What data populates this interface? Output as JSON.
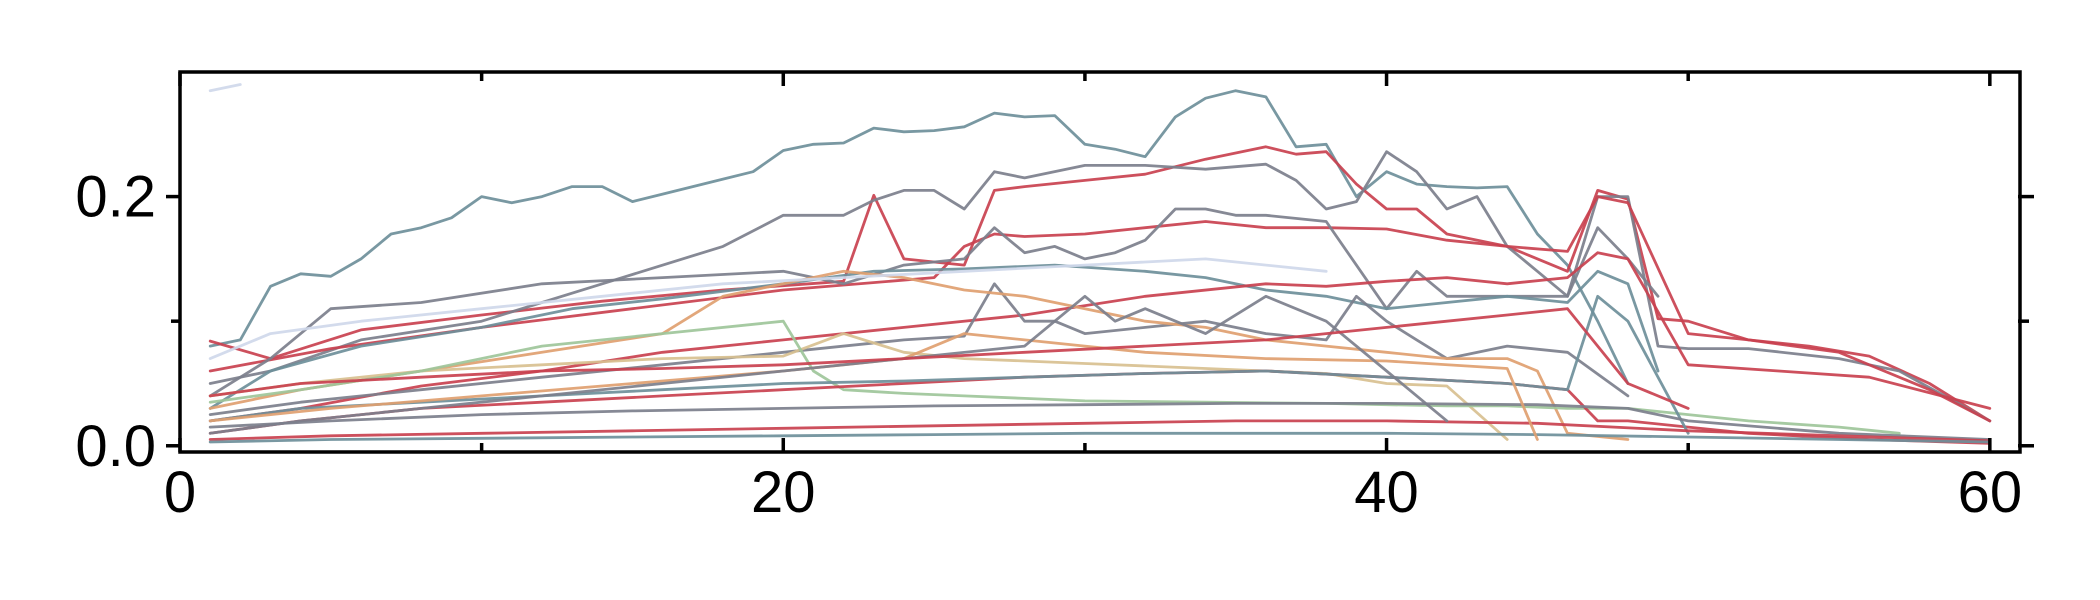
{
  "chart_data": {
    "type": "line",
    "title": "",
    "xlabel": "",
    "ylabel": "",
    "xlim": [
      0,
      61
    ],
    "ylim": [
      -0.005,
      0.3
    ],
    "x_ticks": [
      0,
      20,
      40,
      60
    ],
    "x_tick_labels": [
      "0",
      "20",
      "40",
      "60"
    ],
    "x_minor_ticks": [
      10,
      30,
      50
    ],
    "y_ticks": [
      0.0,
      0.2
    ],
    "y_tick_labels": [
      "0.0",
      "0.2"
    ],
    "y_minor_ticks": [
      0.1
    ],
    "grid": false,
    "legend": "none",
    "palette": {
      "slate": "#6e8f9a",
      "gray": "#7c7f8c",
      "red": "#c9414f",
      "orange": "#e0a070",
      "tan": "#d8c090",
      "green": "#9ec59a",
      "lavender": "#cfd8ea"
    },
    "series": [
      {
        "color": "#6e8f9a",
        "x": [
          1,
          2,
          3,
          4,
          5,
          6,
          7,
          8,
          9,
          10,
          11,
          12,
          13,
          14,
          15,
          16,
          17,
          18,
          19,
          20,
          21,
          22,
          23,
          24,
          25,
          26,
          27,
          28,
          29,
          30,
          31,
          32,
          33,
          34,
          35,
          36,
          37,
          38,
          39,
          40,
          41,
          42,
          43,
          44,
          45,
          46,
          47,
          48
        ],
        "y": [
          0.08,
          0.085,
          0.128,
          0.138,
          0.136,
          0.15,
          0.17,
          0.175,
          0.183,
          0.2,
          0.195,
          0.2,
          0.208,
          0.208,
          0.196,
          0.202,
          0.208,
          0.214,
          0.22,
          0.237,
          0.242,
          0.243,
          0.255,
          0.252,
          0.253,
          0.256,
          0.267,
          0.264,
          0.265,
          0.242,
          0.238,
          0.232,
          0.264,
          0.279,
          0.285,
          0.28,
          0.24,
          0.242,
          0.2,
          0.22,
          0.21,
          0.208,
          0.207,
          0.208,
          0.17,
          0.145,
          0.1,
          0.05
        ]
      },
      {
        "color": "#c9414f",
        "x": [
          1,
          3,
          6,
          10,
          14,
          18,
          22,
          23,
          24,
          26,
          27,
          28,
          30,
          32,
          34,
          36,
          37,
          38,
          39,
          40,
          41,
          42,
          44,
          46,
          47,
          48,
          49,
          50,
          52,
          54,
          56,
          58,
          60
        ],
        "y": [
          0.084,
          0.07,
          0.093,
          0.105,
          0.116,
          0.125,
          0.132,
          0.201,
          0.15,
          0.145,
          0.205,
          0.208,
          0.213,
          0.218,
          0.23,
          0.24,
          0.234,
          0.236,
          0.21,
          0.19,
          0.19,
          0.17,
          0.16,
          0.14,
          0.205,
          0.198,
          0.102,
          0.1,
          0.085,
          0.08,
          0.072,
          0.05,
          0.02
        ]
      },
      {
        "color": "#7c7f8c",
        "x": [
          1,
          3,
          6,
          10,
          14,
          18,
          20,
          22,
          23,
          24,
          25,
          26,
          27,
          28,
          30,
          32,
          34,
          36,
          37,
          38,
          39,
          40,
          41,
          42,
          43,
          44,
          45,
          46,
          47,
          48,
          49,
          50,
          52,
          55,
          57,
          60
        ],
        "y": [
          0.05,
          0.06,
          0.085,
          0.1,
          0.13,
          0.16,
          0.185,
          0.185,
          0.197,
          0.205,
          0.205,
          0.19,
          0.22,
          0.215,
          0.225,
          0.225,
          0.222,
          0.226,
          0.213,
          0.19,
          0.196,
          0.236,
          0.22,
          0.19,
          0.2,
          0.16,
          0.14,
          0.12,
          0.2,
          0.2,
          0.08,
          0.078,
          0.078,
          0.07,
          0.06,
          0.02
        ]
      },
      {
        "color": "#c9414f",
        "x": [
          1,
          5,
          10,
          15,
          20,
          25,
          26,
          27,
          28,
          30,
          32,
          34,
          36,
          38,
          40,
          42,
          44,
          46,
          47,
          48,
          50,
          52,
          55,
          58,
          60
        ],
        "y": [
          0.06,
          0.078,
          0.095,
          0.11,
          0.125,
          0.135,
          0.16,
          0.17,
          0.168,
          0.17,
          0.175,
          0.18,
          0.175,
          0.175,
          0.174,
          0.165,
          0.16,
          0.156,
          0.2,
          0.195,
          0.09,
          0.085,
          0.075,
          0.045,
          0.02
        ]
      },
      {
        "color": "#7c7f8c",
        "x": [
          1,
          3,
          5,
          8,
          12,
          16,
          20,
          22,
          24,
          26,
          27,
          28,
          29,
          30,
          31,
          32,
          33,
          34,
          35,
          36,
          38,
          40,
          41,
          42,
          44,
          46,
          47,
          48,
          49
        ],
        "y": [
          0.04,
          0.07,
          0.11,
          0.115,
          0.13,
          0.135,
          0.14,
          0.13,
          0.145,
          0.15,
          0.175,
          0.155,
          0.16,
          0.15,
          0.155,
          0.165,
          0.19,
          0.19,
          0.185,
          0.185,
          0.18,
          0.11,
          0.14,
          0.12,
          0.12,
          0.12,
          0.175,
          0.15,
          0.12
        ]
      },
      {
        "color": "#6e8f9a",
        "x": [
          1,
          3,
          6,
          10,
          13,
          16,
          20,
          23,
          26,
          29,
          32,
          34,
          36,
          38,
          40,
          42,
          44,
          46,
          47,
          48,
          49
        ],
        "y": [
          0.03,
          0.06,
          0.08,
          0.095,
          0.11,
          0.118,
          0.13,
          0.14,
          0.142,
          0.145,
          0.14,
          0.135,
          0.125,
          0.12,
          0.11,
          0.115,
          0.12,
          0.115,
          0.14,
          0.13,
          0.06
        ]
      },
      {
        "color": "#c9414f",
        "x": [
          1,
          4,
          8,
          12,
          16,
          20,
          24,
          28,
          32,
          36,
          38,
          40,
          42,
          44,
          46,
          47,
          48,
          50,
          53,
          56,
          60
        ],
        "y": [
          0.02,
          0.03,
          0.048,
          0.06,
          0.075,
          0.085,
          0.095,
          0.105,
          0.12,
          0.13,
          0.128,
          0.132,
          0.135,
          0.13,
          0.135,
          0.155,
          0.15,
          0.065,
          0.06,
          0.055,
          0.03
        ]
      },
      {
        "color": "#7c7f8c",
        "x": [
          1,
          4,
          8,
          12,
          16,
          20,
          24,
          26,
          27,
          28,
          29,
          30,
          32,
          34,
          36,
          38,
          39,
          40,
          41,
          42,
          44,
          46,
          48
        ],
        "y": [
          0.025,
          0.035,
          0.045,
          0.055,
          0.065,
          0.075,
          0.085,
          0.088,
          0.13,
          0.1,
          0.1,
          0.09,
          0.095,
          0.1,
          0.09,
          0.085,
          0.12,
          0.1,
          0.085,
          0.07,
          0.08,
          0.075,
          0.04
        ]
      },
      {
        "color": "#e0a070",
        "x": [
          1,
          4,
          8,
          12,
          16,
          18,
          20,
          22,
          24,
          26,
          28,
          30,
          32,
          34,
          36,
          38,
          40,
          42,
          44,
          45,
          46,
          48
        ],
        "y": [
          0.03,
          0.045,
          0.06,
          0.075,
          0.09,
          0.12,
          0.13,
          0.14,
          0.135,
          0.125,
          0.12,
          0.11,
          0.1,
          0.095,
          0.085,
          0.08,
          0.075,
          0.07,
          0.07,
          0.06,
          0.01,
          0.005
        ]
      },
      {
        "color": "#d8c090",
        "x": [
          1,
          4,
          8,
          12,
          16,
          20,
          22,
          24,
          26,
          28,
          30,
          32,
          34,
          36,
          38,
          40,
          42,
          44
        ],
        "y": [
          0.04,
          0.05,
          0.06,
          0.065,
          0.07,
          0.072,
          0.09,
          0.075,
          0.07,
          0.068,
          0.066,
          0.064,
          0.062,
          0.06,
          0.058,
          0.05,
          0.048,
          0.005
        ]
      },
      {
        "color": "#9ec59a",
        "x": [
          1,
          4,
          8,
          12,
          16,
          20,
          21,
          22,
          24,
          26,
          28,
          30,
          34,
          38,
          40,
          42,
          44,
          46,
          48,
          50,
          52,
          55,
          57
        ],
        "y": [
          0.035,
          0.045,
          0.06,
          0.08,
          0.09,
          0.1,
          0.06,
          0.045,
          0.042,
          0.04,
          0.038,
          0.036,
          0.035,
          0.034,
          0.033,
          0.032,
          0.032,
          0.03,
          0.03,
          0.025,
          0.02,
          0.015,
          0.01
        ]
      },
      {
        "color": "#c9414f",
        "x": [
          1,
          4,
          8,
          12,
          16,
          20,
          24,
          28,
          32,
          36,
          40,
          44,
          46,
          47,
          48,
          50,
          52,
          56,
          60
        ],
        "y": [
          0.01,
          0.02,
          0.03,
          0.035,
          0.04,
          0.045,
          0.05,
          0.055,
          0.058,
          0.06,
          0.055,
          0.05,
          0.045,
          0.02,
          0.02,
          0.015,
          0.01,
          0.005,
          0.002
        ]
      },
      {
        "color": "#6e8f9a",
        "x": [
          1,
          4,
          8,
          12,
          16,
          20,
          24,
          28,
          32,
          36,
          40,
          44,
          46,
          47,
          48,
          50
        ],
        "y": [
          0.02,
          0.03,
          0.035,
          0.04,
          0.045,
          0.05,
          0.052,
          0.055,
          0.058,
          0.06,
          0.055,
          0.05,
          0.045,
          0.12,
          0.1,
          0.01
        ]
      },
      {
        "color": "#7c7f8c",
        "x": [
          1,
          5,
          10,
          15,
          20,
          25,
          30,
          35,
          40,
          45,
          48,
          50,
          55,
          60
        ],
        "y": [
          0.015,
          0.02,
          0.025,
          0.028,
          0.03,
          0.032,
          0.033,
          0.034,
          0.034,
          0.033,
          0.03,
          0.02,
          0.01,
          0.005
        ]
      },
      {
        "color": "#c9414f",
        "x": [
          1,
          5,
          10,
          15,
          20,
          25,
          30,
          35,
          40,
          45,
          50,
          55,
          60
        ],
        "y": [
          0.005,
          0.008,
          0.01,
          0.012,
          0.014,
          0.016,
          0.018,
          0.02,
          0.02,
          0.018,
          0.012,
          0.008,
          0.004
        ]
      },
      {
        "color": "#6e8f9a",
        "x": [
          1,
          5,
          10,
          15,
          20,
          25,
          30,
          35,
          40,
          45,
          50,
          55,
          60
        ],
        "y": [
          0.003,
          0.005,
          0.006,
          0.007,
          0.008,
          0.009,
          0.01,
          0.01,
          0.01,
          0.009,
          0.007,
          0.005,
          0.003
        ]
      },
      {
        "color": "#cfd8ea",
        "x": [
          1,
          2
        ],
        "y": [
          0.285,
          0.29
        ]
      },
      {
        "color": "#cfd8ea",
        "x": [
          1,
          3,
          6,
          10,
          14,
          18,
          22,
          26,
          30,
          34,
          38
        ],
        "y": [
          0.07,
          0.09,
          0.1,
          0.11,
          0.12,
          0.13,
          0.135,
          0.14,
          0.145,
          0.15,
          0.14
        ]
      },
      {
        "color": "#e0a070",
        "x": [
          1,
          5,
          10,
          15,
          20,
          22,
          24,
          26,
          28,
          30,
          32,
          36,
          40,
          44,
          45
        ],
        "y": [
          0.02,
          0.03,
          0.04,
          0.05,
          0.06,
          0.065,
          0.07,
          0.09,
          0.085,
          0.08,
          0.075,
          0.07,
          0.068,
          0.062,
          0.005
        ]
      },
      {
        "color": "#7c7f8c",
        "x": [
          1,
          4,
          8,
          12,
          16,
          20,
          24,
          28,
          30,
          31,
          32,
          34,
          36,
          38,
          40,
          42
        ],
        "y": [
          0.01,
          0.02,
          0.03,
          0.04,
          0.05,
          0.06,
          0.07,
          0.08,
          0.12,
          0.1,
          0.11,
          0.09,
          0.12,
          0.1,
          0.06,
          0.02
        ]
      },
      {
        "color": "#c9414f",
        "x": [
          1,
          4,
          8,
          12,
          16,
          20,
          24,
          28,
          32,
          36,
          38,
          40,
          42,
          44,
          46,
          48,
          50
        ],
        "y": [
          0.04,
          0.05,
          0.055,
          0.06,
          0.062,
          0.065,
          0.07,
          0.075,
          0.08,
          0.085,
          0.09,
          0.095,
          0.1,
          0.105,
          0.11,
          0.05,
          0.03
        ]
      }
    ]
  }
}
